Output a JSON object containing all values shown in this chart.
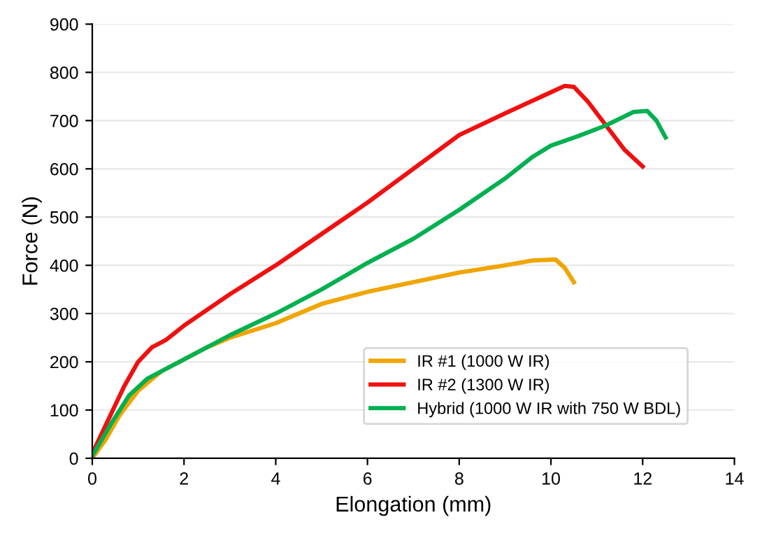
{
  "chart_data": {
    "type": "line",
    "xlabel": "Elongation (mm)",
    "ylabel": "Force (N)",
    "xlim": [
      0,
      14
    ],
    "xticks": [
      0,
      2,
      4,
      6,
      8,
      10,
      12,
      14
    ],
    "ylim": [
      0,
      900
    ],
    "yticks": [
      0,
      100,
      200,
      300,
      400,
      500,
      600,
      700,
      800,
      900
    ],
    "grid": "y",
    "legend": "bottom right",
    "marker": "none",
    "line_style": "solid",
    "series": [
      {
        "name": "IR #1 (1000 W IR)",
        "color": "#f0a500",
        "x": [
          0,
          0.3,
          0.6,
          1.0,
          1.5,
          2,
          2.5,
          3,
          4,
          5,
          6,
          7,
          8,
          9,
          9.6,
          10.1,
          10.3,
          10.5
        ],
        "values": [
          0,
          40,
          90,
          140,
          180,
          205,
          230,
          250,
          280,
          320,
          345,
          365,
          385,
          400,
          410,
          412,
          395,
          365
        ]
      },
      {
        "name": "IR #2 (1300 W IR)",
        "color": "#f01010",
        "x": [
          0,
          0.3,
          0.7,
          1.0,
          1.3,
          1.6,
          2,
          3,
          4,
          5,
          6,
          7,
          8,
          9,
          9.8,
          10.3,
          10.5,
          10.8,
          11.2,
          11.6,
          12
        ],
        "values": [
          10,
          70,
          150,
          200,
          230,
          245,
          275,
          340,
          400,
          465,
          530,
          600,
          670,
          715,
          750,
          772,
          770,
          740,
          690,
          640,
          605
        ]
      },
      {
        "name": "Hybrid (1000 W IR with 750 W BDL)",
        "color": "#00b050",
        "x": [
          0,
          0.4,
          0.8,
          1.2,
          1.6,
          2,
          3,
          4,
          5,
          6,
          7,
          8,
          9,
          9.6,
          10,
          10.6,
          11.2,
          11.8,
          12.1,
          12.3,
          12.5
        ],
        "values": [
          5,
          70,
          130,
          165,
          185,
          205,
          255,
          300,
          350,
          405,
          455,
          515,
          580,
          625,
          648,
          668,
          690,
          718,
          720,
          700,
          665
        ]
      }
    ]
  }
}
